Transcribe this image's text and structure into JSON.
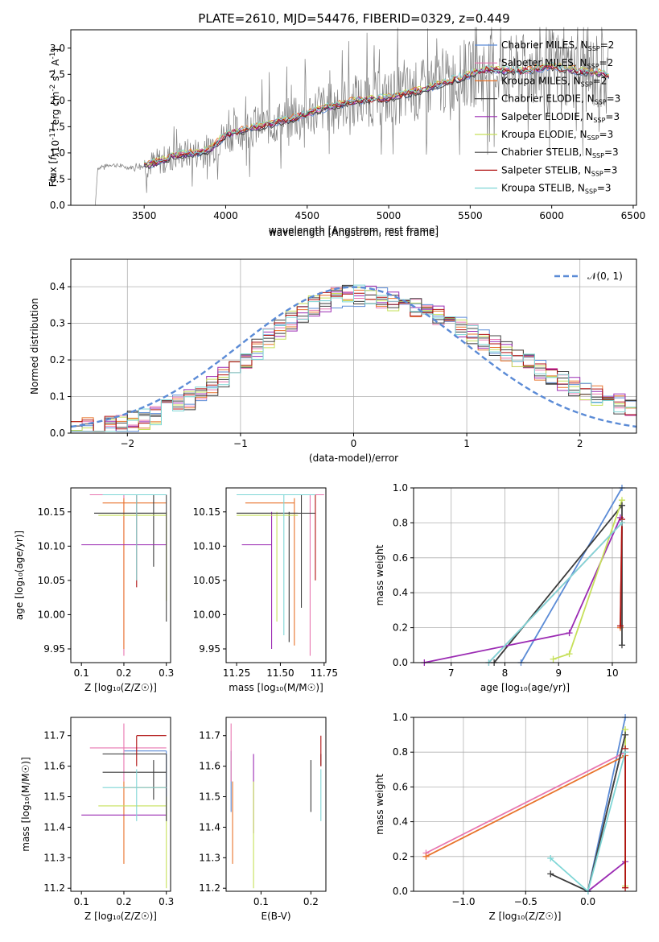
{
  "title": "PLATE=2610, MJD=54476, FIBERID=0329, z=0.449",
  "colors": {
    "Chabrier MILES": "#5b8bd6",
    "Salpeter MILES": "#e877b0",
    "Kroupa MILES": "#e8732b",
    "Chabrier ELODIE": "#3a3a3a",
    "Salpeter ELODIE": "#9b2bb3",
    "Kroupa ELODIE": "#c6e05a",
    "Chabrier STELIB": "#444444",
    "Salpeter STELIB": "#b01010",
    "Kroupa STELIB": "#7fd6d6",
    "data": "#7f7f7f",
    "gaussian": "#5b8bd6"
  },
  "chart_data": [
    {
      "type": "line",
      "id": "spectrum",
      "title": "PLATE=2610, MJD=54476, FIBERID=0329, z=0.449",
      "xlabel": "wavelength [Angstrom, rest frame]",
      "ylabel_main": "Flux [",
      "ylabel_f": "f",
      "ylabel_lambda": "λ",
      "ylabel_tail": "10",
      "ylabel_sup1": "-17",
      "ylabel_mid": " erg cm",
      "ylabel_sup2": "-2",
      "ylabel_s": " s",
      "ylabel_sup3": "-1",
      "ylabel_A": " A",
      "ylabel_sup4": "-1",
      "ylabel_end": "]",
      "xlim": [
        3050,
        6520
      ],
      "ylim": [
        0,
        3.35
      ],
      "xticks": [
        3500,
        4000,
        4500,
        5000,
        5500,
        6000,
        6500
      ],
      "yticks": [
        0.0,
        0.5,
        1.0,
        1.5,
        2.0,
        2.5,
        3.0
      ],
      "legend_position": "top-right",
      "legend": [
        {
          "name": "Chabrier MILES",
          "nssp": "2"
        },
        {
          "name": "Salpeter MILES",
          "nssp": "2"
        },
        {
          "name": "Kroupa MILES",
          "nssp": "2"
        },
        {
          "name": "Chabrier ELODIE",
          "nssp": "3"
        },
        {
          "name": "Salpeter ELODIE",
          "nssp": "3"
        },
        {
          "name": "Kroupa ELODIE",
          "nssp": "3"
        },
        {
          "name": "Chabrier STELIB",
          "nssp": "3"
        },
        {
          "name": "Salpeter STELIB",
          "nssp": "3"
        },
        {
          "name": "Kroupa STELIB",
          "nssp": "3"
        }
      ],
      "nssp_label": "N",
      "nssp_sub": "SSP",
      "continuum_points": [
        [
          3200,
          0.7
        ],
        [
          3300,
          0.78
        ],
        [
          3400,
          0.72
        ],
        [
          3500,
          0.75
        ],
        [
          3600,
          0.85
        ],
        [
          3700,
          0.95
        ],
        [
          3800,
          1.0
        ],
        [
          3900,
          1.05
        ],
        [
          4000,
          1.35
        ],
        [
          4200,
          1.5
        ],
        [
          4400,
          1.65
        ],
        [
          4600,
          1.85
        ],
        [
          4800,
          2.0
        ],
        [
          5000,
          2.05
        ],
        [
          5200,
          2.2
        ],
        [
          5400,
          2.4
        ],
        [
          5600,
          2.6
        ],
        [
          5800,
          2.55
        ],
        [
          6000,
          2.65
        ],
        [
          6200,
          2.55
        ],
        [
          6350,
          2.5
        ]
      ],
      "noise_start": 3500
    },
    {
      "type": "bar",
      "id": "residuals",
      "xlabel": "(data-model)/error",
      "ylabel": "Normed distribution",
      "xlim": [
        -2.5,
        2.5
      ],
      "ylim": [
        0,
        0.475
      ],
      "xticks": [
        -2,
        -1,
        0,
        1,
        2
      ],
      "yticks": [
        0.0,
        0.1,
        0.2,
        0.3,
        0.4
      ],
      "gaussian_label": "𝒩(0, 1)",
      "bin_width": 0.1,
      "grid": true,
      "legend_position": "top-right"
    },
    {
      "type": "scatter",
      "id": "z-age",
      "xlabel": "Z [log₁₀(Z/Z☉)]",
      "ylabel": "age  [log₁₀(age/yr)]",
      "xlim": [
        0.075,
        0.31
      ],
      "ylim": [
        9.93,
        10.185
      ],
      "xticks": [
        0.1,
        0.2,
        0.3
      ],
      "yticks": [
        9.95,
        10.0,
        10.05,
        10.1,
        10.15
      ],
      "points": [
        {
          "x": 0.3,
          "y": 10.175,
          "xe": [
            0.3,
            0.12
          ],
          "ye": [
            10.175,
            10.175
          ],
          "c": "Chabrier MILES"
        },
        {
          "x": 0.2,
          "y": 10.175,
          "xe": [
            0.12,
            0.3
          ],
          "ye": [
            9.94,
            10.175
          ],
          "c": "Salpeter MILES"
        },
        {
          "x": 0.2,
          "y": 10.163,
          "xe": [
            0.15,
            0.3
          ],
          "ye": [
            9.95,
            10.17
          ],
          "c": "Kroupa MILES"
        },
        {
          "x": 0.27,
          "y": 10.148,
          "xe": [
            0.13,
            0.3
          ],
          "ye": [
            10.07,
            10.175
          ],
          "c": "Chabrier ELODIE"
        },
        {
          "x": 0.1,
          "y": 10.102,
          "xe": [
            0.1,
            0.3
          ],
          "ye": [
            10.102,
            10.102
          ],
          "c": "Salpeter ELODIE"
        },
        {
          "x": 0.3,
          "y": 10.145,
          "xe": [
            0.14,
            0.3
          ],
          "ye": [
            10.02,
            10.15
          ],
          "c": "Kroupa ELODIE"
        },
        {
          "x": 0.3,
          "y": 10.148,
          "xe": [
            0.13,
            0.3
          ],
          "ye": [
            9.99,
            10.175
          ],
          "c": "Chabrier STELIB"
        },
        {
          "x": 0.23,
          "y": 10.175,
          "xe": [
            0.23,
            0.23
          ],
          "ye": [
            10.04,
            10.175
          ],
          "c": "Salpeter STELIB"
        },
        {
          "x": 0.23,
          "y": 10.175,
          "xe": [
            0.15,
            0.3
          ],
          "ye": [
            10.05,
            10.175
          ],
          "c": "Kroupa STELIB"
        }
      ]
    },
    {
      "type": "scatter",
      "id": "mass-age",
      "xlabel": "mass [log₁₀(M/M☉)]",
      "xlim": [
        11.19,
        11.76
      ],
      "ylim": [
        9.93,
        10.185
      ],
      "xticks": [
        11.25,
        11.5,
        11.75
      ],
      "yticks": [
        9.95,
        10.0,
        10.05,
        10.1,
        10.15
      ],
      "points": [
        {
          "x": 11.6,
          "y": 10.175,
          "xe": [
            11.45,
            11.7
          ],
          "ye": [
            10.175,
            10.175
          ],
          "c": "Chabrier MILES"
        },
        {
          "x": 11.67,
          "y": 10.175,
          "xe": [
            11.4,
            11.75
          ],
          "ye": [
            9.94,
            10.175
          ],
          "c": "Salpeter MILES"
        },
        {
          "x": 11.58,
          "y": 10.163,
          "xe": [
            11.3,
            11.58
          ],
          "ye": [
            9.955,
            10.17
          ],
          "c": "Kroupa MILES"
        },
        {
          "x": 11.55,
          "y": 10.148,
          "xe": [
            11.25,
            11.6
          ],
          "ye": [
            9.96,
            10.15
          ],
          "c": "Chabrier ELODIE"
        },
        {
          "x": 11.45,
          "y": 10.102,
          "xe": [
            11.28,
            11.45
          ],
          "ye": [
            9.95,
            10.15
          ],
          "c": "Salpeter ELODIE"
        },
        {
          "x": 11.48,
          "y": 10.145,
          "xe": [
            11.25,
            11.6
          ],
          "ye": [
            9.99,
            10.15
          ],
          "c": "Kroupa ELODIE"
        },
        {
          "x": 11.62,
          "y": 10.148,
          "xe": [
            11.25,
            11.7
          ],
          "ye": [
            10.01,
            10.175
          ],
          "c": "Chabrier STELIB"
        },
        {
          "x": 11.7,
          "y": 10.175,
          "xe": [
            11.62,
            11.7
          ],
          "ye": [
            10.05,
            10.175
          ],
          "c": "Salpeter STELIB"
        },
        {
          "x": 11.52,
          "y": 10.175,
          "xe": [
            11.25,
            11.7
          ],
          "ye": [
            9.97,
            10.175
          ],
          "c": "Kroupa STELIB"
        }
      ]
    },
    {
      "type": "line",
      "id": "age-weight",
      "xlabel": "age  [log₁₀(age/yr)]",
      "ylabel": "mass weight",
      "xlim": [
        6.3,
        10.45
      ],
      "ylim": [
        0,
        1.0
      ],
      "xticks": [
        7,
        8,
        9,
        10
      ],
      "yticks": [
        0.0,
        0.2,
        0.4,
        0.6,
        0.8,
        1.0
      ],
      "grid": true,
      "series": [
        {
          "c": "Chabrier MILES",
          "x": [
            8.3,
            10.18
          ],
          "y": [
            0.0,
            1.0
          ]
        },
        {
          "c": "Salpeter MILES",
          "x": [
            7.7,
            10.18
          ],
          "y": [
            0.0,
            0.8
          ]
        },
        {
          "c": "Kroupa MILES",
          "x": [
            10.15,
            10.18
          ],
          "y": [
            0.2,
            0.8
          ]
        },
        {
          "c": "Chabrier ELODIE",
          "x": [
            7.8,
            10.18
          ],
          "y": [
            0.0,
            0.9
          ]
        },
        {
          "c": "Salpeter ELODIE",
          "x": [
            6.5,
            9.2,
            10.15
          ],
          "y": [
            0.0,
            0.17,
            0.83
          ]
        },
        {
          "c": "Kroupa ELODIE",
          "x": [
            8.9,
            9.2,
            10.18
          ],
          "y": [
            0.02,
            0.05,
            0.93
          ]
        },
        {
          "c": "Chabrier STELIB",
          "x": [
            10.18,
            10.18
          ],
          "y": [
            0.1,
            0.9
          ]
        },
        {
          "c": "Salpeter STELIB",
          "x": [
            10.15,
            10.18
          ],
          "y": [
            0.21,
            0.82
          ]
        },
        {
          "c": "Kroupa STELIB",
          "x": [
            7.7,
            10.18
          ],
          "y": [
            0.0,
            0.8
          ]
        }
      ]
    },
    {
      "type": "scatter",
      "id": "z-mass",
      "xlabel": "Z [log₁₀(Z/Z☉)]",
      "ylabel": "mass [log₁₀(M/M☉)]",
      "xlim": [
        0.075,
        0.31
      ],
      "ylim": [
        11.19,
        11.76
      ],
      "xticks": [
        0.1,
        0.2,
        0.3
      ],
      "yticks": [
        11.2,
        11.3,
        11.4,
        11.5,
        11.6,
        11.7
      ],
      "points": [
        {
          "x": 0.3,
          "y": 11.65,
          "xe": [
            0.2,
            0.3
          ],
          "ye": [
            11.42,
            11.65
          ],
          "c": "Chabrier MILES"
        },
        {
          "x": 0.2,
          "y": 11.66,
          "xe": [
            0.12,
            0.3
          ],
          "ye": [
            11.55,
            11.74
          ],
          "c": "Salpeter MILES"
        },
        {
          "x": 0.2,
          "y": 11.53,
          "xe": [
            0.2,
            0.3
          ],
          "ye": [
            11.28,
            11.55
          ],
          "c": "Kroupa MILES"
        },
        {
          "x": 0.27,
          "y": 11.58,
          "xe": [
            0.15,
            0.3
          ],
          "ye": [
            11.49,
            11.62
          ],
          "c": "Chabrier ELODIE"
        },
        {
          "x": 0.1,
          "y": 11.44,
          "xe": [
            0.1,
            0.3
          ],
          "ye": [
            11.44,
            11.44
          ],
          "c": "Salpeter ELODIE"
        },
        {
          "x": 0.3,
          "y": 11.47,
          "xe": [
            0.14,
            0.3
          ],
          "ye": [
            11.2,
            11.5
          ],
          "c": "Kroupa ELODIE"
        },
        {
          "x": 0.3,
          "y": 11.64,
          "xe": [
            0.15,
            0.3
          ],
          "ye": [
            11.42,
            11.64
          ],
          "c": "Chabrier STELIB"
        },
        {
          "x": 0.23,
          "y": 11.7,
          "xe": [
            0.23,
            0.3
          ],
          "ye": [
            11.6,
            11.7
          ],
          "c": "Salpeter STELIB"
        },
        {
          "x": 0.23,
          "y": 11.53,
          "xe": [
            0.15,
            0.3
          ],
          "ye": [
            11.42,
            11.59
          ],
          "c": "Kroupa STELIB"
        }
      ]
    },
    {
      "type": "scatter",
      "id": "ebv-mass",
      "xlabel": "E(B-V)",
      "xlim": [
        0.03,
        0.23
      ],
      "ylim": [
        11.19,
        11.76
      ],
      "xticks": [
        0.1,
        0.2
      ],
      "yticks": [
        11.2,
        11.3,
        11.4,
        11.5,
        11.6,
        11.7
      ],
      "points": [
        {
          "x": 0.04,
          "y": 11.65,
          "ye": [
            11.45,
            11.65
          ],
          "c": "Chabrier MILES"
        },
        {
          "x": 0.04,
          "y": 11.66,
          "ye": [
            11.55,
            11.74
          ],
          "c": "Salpeter MILES"
        },
        {
          "x": 0.043,
          "y": 11.53,
          "ye": [
            11.28,
            11.55
          ],
          "c": "Kroupa MILES"
        },
        {
          "x": 0.2,
          "y": 11.58,
          "ye": [
            11.45,
            11.62
          ],
          "c": "Chabrier ELODIE"
        },
        {
          "x": 0.085,
          "y": 11.5,
          "ye": [
            11.38,
            11.64
          ],
          "c": "Salpeter ELODIE"
        },
        {
          "x": 0.085,
          "y": 11.47,
          "ye": [
            11.2,
            11.55
          ],
          "c": "Kroupa ELODIE"
        },
        {
          "x": 0.22,
          "y": 11.64,
          "ye": [
            11.6,
            11.64
          ],
          "c": "Chabrier STELIB"
        },
        {
          "x": 0.22,
          "y": 11.7,
          "ye": [
            11.6,
            11.7
          ],
          "c": "Salpeter STELIB"
        },
        {
          "x": 0.22,
          "y": 11.53,
          "ye": [
            11.42,
            11.59
          ],
          "c": "Kroupa STELIB"
        }
      ]
    },
    {
      "type": "line",
      "id": "z-weight",
      "xlabel": "Z [log₁₀(Z/Z☉)]",
      "ylabel": "mass weight",
      "xlim": [
        -1.4,
        0.39
      ],
      "ylim": [
        0,
        1.0
      ],
      "xticks": [
        -1.0,
        -0.5,
        0.0
      ],
      "yticks": [
        0.0,
        0.2,
        0.4,
        0.6,
        0.8,
        1.0
      ],
      "grid": true,
      "series": [
        {
          "c": "Chabrier MILES",
          "x": [
            0.0,
            0.3
          ],
          "y": [
            0.0,
            1.0
          ]
        },
        {
          "c": "Salpeter MILES",
          "x": [
            -1.3,
            0.3
          ],
          "y": [
            0.22,
            0.8
          ]
        },
        {
          "c": "Kroupa MILES",
          "x": [
            -1.3,
            0.3
          ],
          "y": [
            0.2,
            0.78
          ]
        },
        {
          "c": "Chabrier ELODIE",
          "x": [
            -0.3,
            0.0,
            0.3
          ],
          "y": [
            0.1,
            0.0,
            0.9
          ]
        },
        {
          "c": "Salpeter ELODIE",
          "x": [
            0.0,
            0.3
          ],
          "y": [
            0.0,
            0.17
          ]
        },
        {
          "c": "Kroupa ELODIE",
          "x": [
            0.3,
            0.3
          ],
          "y": [
            0.03,
            0.93
          ]
        },
        {
          "c": "Chabrier STELIB",
          "x": [
            0.0,
            0.3
          ],
          "y": [
            0.0,
            0.9
          ]
        },
        {
          "c": "Salpeter STELIB",
          "x": [
            0.3,
            0.3
          ],
          "y": [
            0.02,
            0.82
          ]
        },
        {
          "c": "Kroupa STELIB",
          "x": [
            -0.3,
            0.0,
            0.3
          ],
          "y": [
            0.19,
            0.0,
            0.8
          ]
        }
      ]
    }
  ]
}
